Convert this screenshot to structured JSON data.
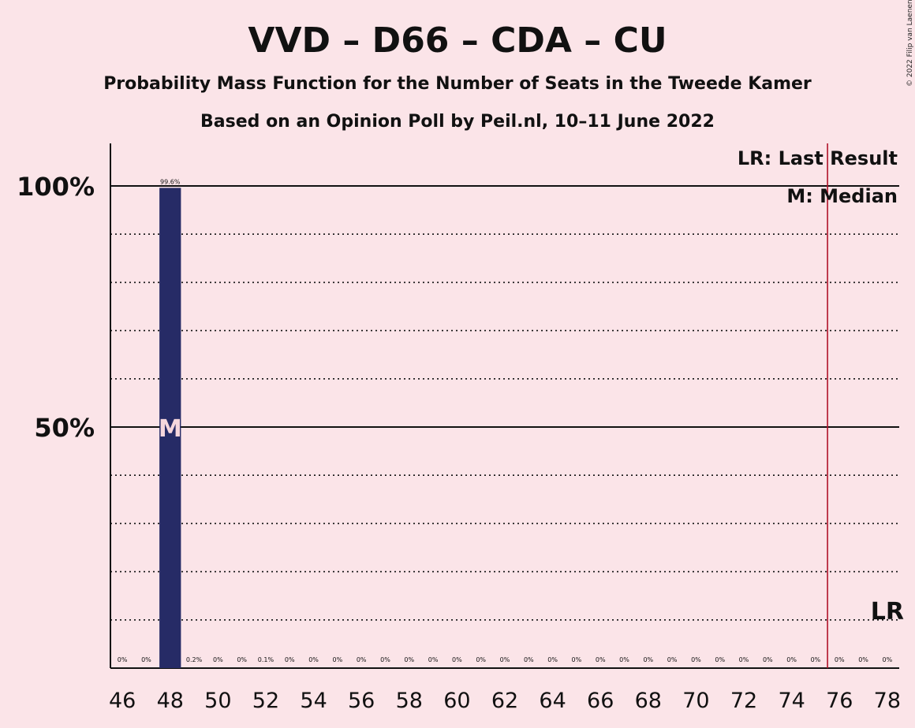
{
  "header": {
    "title": "VVD – D66 – CDA – CU",
    "subtitle": "Probability Mass Function for the Number of Seats in the Tweede Kamer",
    "source_line": "Based on an Opinion Poll by Peil.nl, 10–11 June 2022",
    "copyright": "© 2022 Filip van Laenen"
  },
  "legend": {
    "last_result": "LR: Last Result",
    "median": "M: Median"
  },
  "colors": {
    "background": "#fbe4e8",
    "bar": "#262b66",
    "last_result_line": "#b0122a",
    "median_text": "#f5d6dc"
  },
  "chart_data": {
    "type": "bar",
    "x": [
      46,
      47,
      48,
      49,
      50,
      51,
      52,
      53,
      54,
      55,
      56,
      57,
      58,
      59,
      60,
      61,
      62,
      63,
      64,
      65,
      66,
      67,
      68,
      69,
      70,
      71,
      72,
      73,
      74,
      75,
      76,
      77,
      78
    ],
    "values": [
      0,
      0,
      99.6,
      0.2,
      0,
      0,
      0.1,
      0,
      0,
      0,
      0,
      0,
      0,
      0,
      0,
      0,
      0,
      0,
      0,
      0,
      0,
      0,
      0,
      0,
      0,
      0,
      0,
      0,
      0,
      0,
      0,
      0,
      0
    ],
    "value_labels": [
      "0%",
      "0%",
      "99.6%",
      "0.2%",
      "0%",
      "0%",
      "0.1%",
      "0%",
      "0%",
      "0%",
      "0%",
      "0%",
      "0%",
      "0%",
      "0%",
      "0%",
      "0%",
      "0%",
      "0%",
      "0%",
      "0%",
      "0%",
      "0%",
      "0%",
      "0%",
      "0%",
      "0%",
      "0%",
      "0%",
      "0%",
      "0%",
      "0%",
      "0%"
    ],
    "x_tick_labels": [
      "46",
      "48",
      "50",
      "52",
      "54",
      "56",
      "58",
      "60",
      "62",
      "64",
      "66",
      "68",
      "70",
      "72",
      "74",
      "76",
      "78"
    ],
    "y_tick_labels": [
      "50%",
      "100%"
    ],
    "ylim": [
      0,
      110
    ],
    "xlim": [
      45.5,
      78.5
    ],
    "major_gridlines": [
      50,
      100
    ],
    "minor_gridlines": [
      10,
      20,
      30,
      40,
      60,
      70,
      80,
      90
    ],
    "median": 48,
    "median_marker": "M",
    "last_result": 75.5,
    "last_result_marker": "LR",
    "legend_placement": "top-right"
  }
}
